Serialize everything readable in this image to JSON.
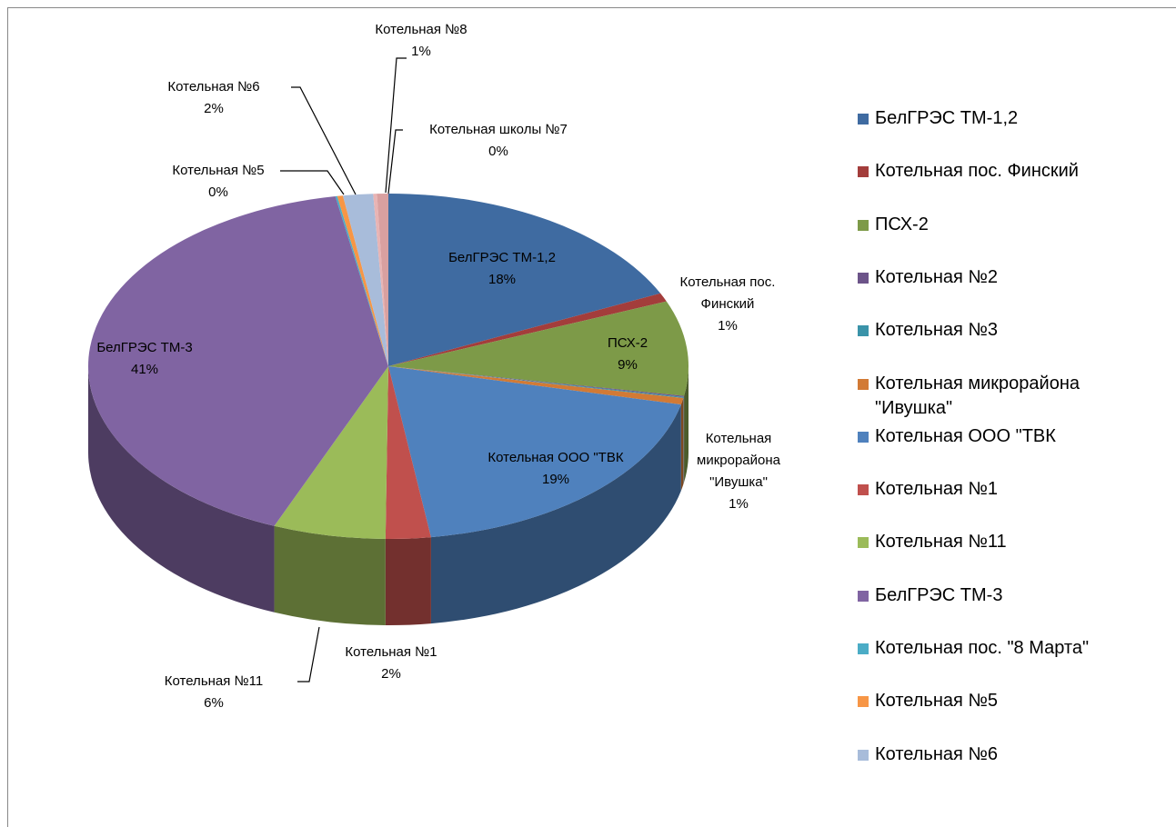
{
  "chart_data": {
    "type": "pie",
    "categories": [
      "БелГРЭС ТМ-1,2",
      "Котельная пос. Финский",
      "ПСХ-2",
      "Котельная №2",
      "Котельная №3",
      "Котельная микрорайона \"Ивушка\"",
      "Котельная ООО \"ТВК",
      "Котельная №1",
      "Котельная №11",
      "БелГРЭС ТМ-3",
      "Котельная пос. \"8 Марта\"",
      "Котельная №5",
      "Котельная №6",
      "Котельная школы №7",
      "Котельная №8"
    ],
    "values": [
      17.9,
      0.8,
      8.8,
      0.1,
      0.1,
      0.6,
      19.0,
      2.4,
      6.0,
      40.6,
      0.1,
      0.3,
      1.6,
      0.2,
      0.6
    ],
    "value_labels": [
      "18%",
      "1%",
      "9%",
      null,
      null,
      "1%",
      "19%",
      "2%",
      "6%",
      "41%",
      null,
      "0%",
      "2%",
      "0%",
      "1%"
    ],
    "colors": [
      "#3f6ba1",
      "#a33d3b",
      "#7d9a48",
      "#6c5489",
      "#3a93a9",
      "#d27a35",
      "#4f81bd",
      "#c0504d",
      "#9bbb59",
      "#8064a2",
      "#4bacc6",
      "#f79646",
      "#a8bcda",
      "#e8b4b4",
      "#d9a0a0"
    ],
    "legend": [
      "БелГРЭС ТМ-1,2",
      "Котельная пос. Финский",
      "ПСХ-2",
      "Котельная №2",
      "Котельная №3",
      "Котельная микрорайона \"Ивушка\"",
      "Котельная ООО \"ТВК",
      "Котельная №1",
      "Котельная №11",
      "БелГРЭС ТМ-3",
      "Котельная пос. \"8 Марта\"",
      "Котельная №5",
      "Котельная №6"
    ]
  }
}
